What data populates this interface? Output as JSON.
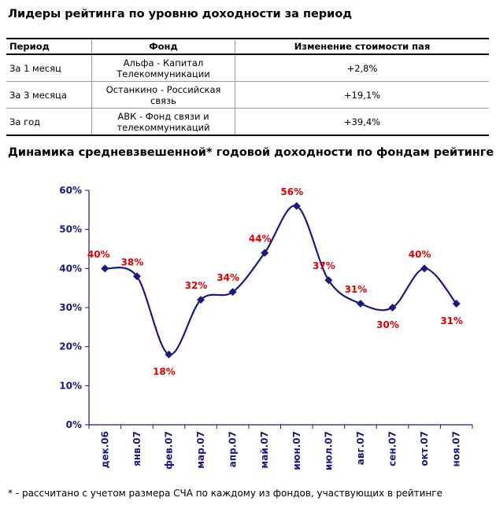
{
  "top_table": {
    "title": "Лидеры рейтинга по уровню доходности за период",
    "headers": [
      "Период",
      "Фонд",
      "Изменение стоимости пая"
    ],
    "rows": [
      {
        "period": "За 1 месяц",
        "fund_line1": "Альфа - Капитал",
        "fund_line2": "Телекоммуникации",
        "change": "+2,8%"
      },
      {
        "period": "За 3 месяца",
        "fund_line1": "Останкино - Российская",
        "fund_line2": "связь",
        "change": "+19,1%"
      },
      {
        "period": "За год",
        "fund_line1": "АВК - Фонд связи и",
        "fund_line2": "телекоммуникаций",
        "change": "+39,4%"
      }
    ]
  },
  "chart_title": "Динамика средневзвешенной* годовой доходности по фондам рейтинге",
  "footnote": "* - рассчитано с учетом размера СЧА по каждому из фондов, участвующих в рейтинге",
  "chart_data": {
    "type": "line",
    "categories": [
      "дек.06",
      "янв.07",
      "фев.07",
      "мар.07",
      "апр.07",
      "май.07",
      "июн.07",
      "июл.07",
      "авг.07",
      "сен.07",
      "окт.07",
      "ноя.07"
    ],
    "series": [
      {
        "values": [
          40,
          38,
          18,
          32,
          34,
          44,
          56,
          37,
          31,
          30,
          40,
          31
        ],
        "labels": [
          "40%",
          "38%",
          "18%",
          "32%",
          "34%",
          "44%",
          "56%",
          "37%",
          "31%",
          "30%",
          "40%",
          "31%"
        ]
      }
    ],
    "ylim": [
      0,
      60
    ],
    "yticks": [
      "0%",
      "10%",
      "20%",
      "30%",
      "40%",
      "50%",
      "60%"
    ],
    "line_color": "#1a1a7e",
    "marker_color": "#1a1a7e",
    "label_color": "#e00000",
    "axis_color": "#1a1a7e",
    "grid": false
  }
}
